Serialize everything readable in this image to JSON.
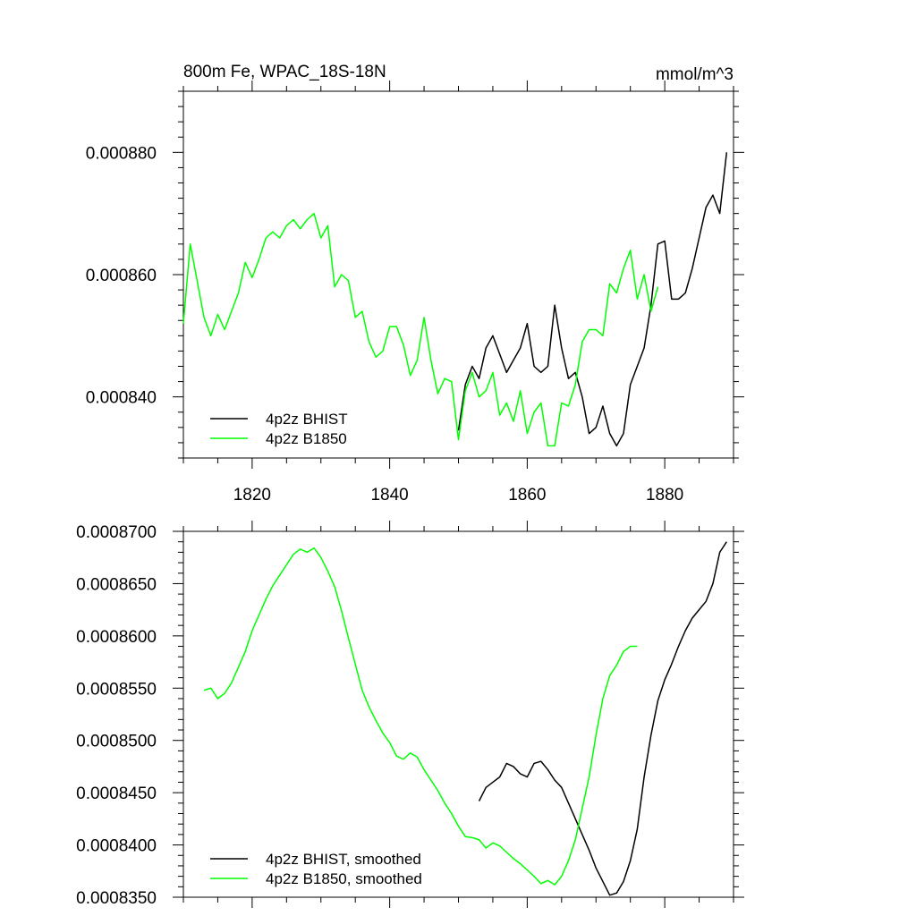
{
  "chart_data": [
    {
      "type": "line",
      "title": "800m Fe, WPAC_18S-18N",
      "units": "mmol/m^3",
      "xlim": [
        1810,
        1890
      ],
      "ylim": [
        0.00083,
        0.00089
      ],
      "xticks": [
        1820,
        1840,
        1860,
        1880
      ],
      "xtick_labels": [
        "1820",
        "1840",
        "1860",
        "1880"
      ],
      "yticks": [
        0.00084,
        0.00086,
        0.00088
      ],
      "ytick_labels": [
        "0.000840",
        "0.000860",
        "0.000880"
      ],
      "grid": false,
      "legend_position": "bottom-left",
      "series": [
        {
          "name": "4p2z BHIST",
          "color": "#000000",
          "x": [
            1850,
            1851,
            1852,
            1853,
            1854,
            1855,
            1856,
            1857,
            1858,
            1859,
            1860,
            1861,
            1862,
            1863,
            1864,
            1865,
            1866,
            1867,
            1868,
            1869,
            1870,
            1871,
            1872,
            1873,
            1874,
            1875,
            1876,
            1877,
            1878,
            1879,
            1880,
            1881,
            1882,
            1883,
            1884,
            1885,
            1886,
            1887,
            1888,
            1889
          ],
          "y": [
            0.0008345,
            0.000842,
            0.000845,
            0.000843,
            0.000848,
            0.00085,
            0.000847,
            0.000844,
            0.000846,
            0.000848,
            0.000852,
            0.000845,
            0.000844,
            0.000845,
            0.000855,
            0.000848,
            0.000843,
            0.000844,
            0.00084,
            0.000834,
            0.000835,
            0.0008385,
            0.000834,
            0.000832,
            0.000834,
            0.000842,
            0.000845,
            0.000848,
            0.000855,
            0.000865,
            0.0008655,
            0.000856,
            0.000856,
            0.000857,
            0.000861,
            0.000866,
            0.000871,
            0.000873,
            0.00087,
            0.00088
          ]
        },
        {
          "name": "4p2z B1850",
          "color": "#00ff00",
          "x": [
            1810,
            1811,
            1812,
            1813,
            1814,
            1815,
            1816,
            1817,
            1818,
            1819,
            1820,
            1821,
            1822,
            1823,
            1824,
            1825,
            1826,
            1827,
            1828,
            1829,
            1830,
            1831,
            1832,
            1833,
            1834,
            1835,
            1836,
            1837,
            1838,
            1839,
            1840,
            1841,
            1842,
            1843,
            1844,
            1845,
            1846,
            1847,
            1848,
            1849,
            1850,
            1851,
            1852,
            1853,
            1854,
            1855,
            1856,
            1857,
            1858,
            1859,
            1860,
            1861,
            1862,
            1863,
            1864,
            1865,
            1866,
            1867,
            1868,
            1869,
            1870,
            1871,
            1872,
            1873,
            1874,
            1875,
            1876,
            1877,
            1878,
            1879
          ],
          "y": [
            0.000852,
            0.000865,
            0.000859,
            0.000853,
            0.00085,
            0.0008535,
            0.000851,
            0.000854,
            0.000857,
            0.000862,
            0.0008595,
            0.0008625,
            0.000866,
            0.000867,
            0.000866,
            0.000868,
            0.000869,
            0.0008675,
            0.000869,
            0.00087,
            0.000866,
            0.000868,
            0.000858,
            0.00086,
            0.000859,
            0.000853,
            0.000854,
            0.000849,
            0.0008465,
            0.0008475,
            0.0008515,
            0.0008515,
            0.0008485,
            0.0008435,
            0.000846,
            0.000853,
            0.000846,
            0.0008405,
            0.000843,
            0.0008425,
            0.000833,
            0.000841,
            0.000844,
            0.00084,
            0.000841,
            0.000844,
            0.000837,
            0.000839,
            0.000836,
            0.000841,
            0.000834,
            0.0008375,
            0.000839,
            0.000832,
            0.000832,
            0.000839,
            0.0008385,
            0.000842,
            0.000849,
            0.000851,
            0.000851,
            0.00085,
            0.0008585,
            0.000857,
            0.000861,
            0.000864,
            0.000856,
            0.00086,
            0.000854,
            0.000858
          ]
        }
      ]
    },
    {
      "type": "line",
      "title": "",
      "xlim": [
        1810,
        1890
      ],
      "ylim": [
        0.000835,
        0.00087
      ],
      "yticks": [
        0.000835,
        0.00084,
        0.000845,
        0.00085,
        0.000855,
        0.00086,
        0.000865,
        0.00087
      ],
      "ytick_labels": [
        "0.0008350",
        "0.0008400",
        "0.0008450",
        "0.0008500",
        "0.0008550",
        "0.0008600",
        "0.0008650",
        "0.0008700"
      ],
      "grid": false,
      "legend_position": "bottom-left",
      "series": [
        {
          "name": "4p2z BHIST, smoothed",
          "color": "#000000",
          "x": [
            1853,
            1854,
            1855,
            1856,
            1857,
            1858,
            1859,
            1860,
            1861,
            1862,
            1863,
            1864,
            1865,
            1866,
            1867,
            1868,
            1869,
            1870,
            1871,
            1872,
            1873,
            1874,
            1875,
            1876,
            1877,
            1878,
            1879,
            1880,
            1881,
            1882,
            1883,
            1884,
            1885,
            1886,
            1887,
            1888,
            1889
          ],
          "y": [
            0.0008442,
            0.0008455,
            0.000846,
            0.0008465,
            0.0008478,
            0.0008475,
            0.0008468,
            0.0008465,
            0.0008478,
            0.000848,
            0.0008472,
            0.0008462,
            0.0008455,
            0.000844,
            0.0008425,
            0.000841,
            0.0008395,
            0.0008378,
            0.0008365,
            0.0008352,
            0.0008354,
            0.0008365,
            0.0008385,
            0.0008415,
            0.0008465,
            0.0008505,
            0.0008538,
            0.0008558,
            0.0008573,
            0.000859,
            0.0008605,
            0.0008617,
            0.0008625,
            0.0008633,
            0.000865,
            0.000868,
            0.000869
          ]
        },
        {
          "name": "4p2z B1850, smoothed",
          "color": "#00ff00",
          "x": [
            1813,
            1814,
            1815,
            1816,
            1817,
            1818,
            1819,
            1820,
            1821,
            1822,
            1823,
            1824,
            1825,
            1826,
            1827,
            1828,
            1829,
            1830,
            1831,
            1832,
            1833,
            1834,
            1835,
            1836,
            1837,
            1838,
            1839,
            1840,
            1841,
            1842,
            1843,
            1844,
            1845,
            1846,
            1847,
            1848,
            1849,
            1850,
            1851,
            1852,
            1853,
            1854,
            1855,
            1856,
            1857,
            1858,
            1859,
            1860,
            1861,
            1862,
            1863,
            1864,
            1865,
            1866,
            1867,
            1868,
            1869,
            1870,
            1871,
            1872,
            1873,
            1874,
            1875,
            1876
          ],
          "y": [
            0.0008548,
            0.000855,
            0.000854,
            0.0008545,
            0.0008555,
            0.000857,
            0.0008585,
            0.0008605,
            0.000862,
            0.0008635,
            0.0008648,
            0.0008658,
            0.0008668,
            0.0008678,
            0.0008683,
            0.000868,
            0.0008684,
            0.0008675,
            0.0008662,
            0.0008647,
            0.0008624,
            0.0008598,
            0.0008573,
            0.0008548,
            0.0008532,
            0.0008519,
            0.0008507,
            0.0008498,
            0.0008485,
            0.0008482,
            0.0008488,
            0.0008484,
            0.0008472,
            0.0008462,
            0.0008452,
            0.000844,
            0.000843,
            0.0008418,
            0.0008408,
            0.0008407,
            0.0008405,
            0.0008397,
            0.0008402,
            0.0008399,
            0.0008393,
            0.0008387,
            0.0008382,
            0.0008376,
            0.000837,
            0.0008363,
            0.0008366,
            0.0008362,
            0.000837,
            0.0008385,
            0.0008405,
            0.0008435,
            0.0008465,
            0.0008505,
            0.000854,
            0.0008562,
            0.0008572,
            0.0008585,
            0.000859,
            0.000859
          ]
        }
      ]
    }
  ]
}
